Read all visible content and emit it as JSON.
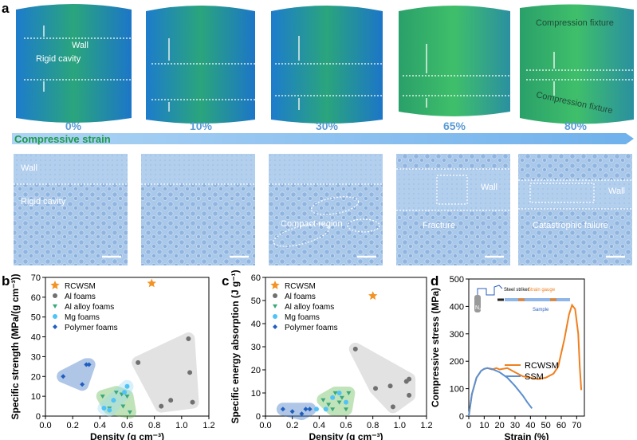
{
  "panel_labels": [
    "a",
    "b",
    "c",
    "d"
  ],
  "panel_a": {
    "strains": [
      "0%",
      "10%",
      "30%",
      "65%",
      "80%"
    ],
    "axis_label": "Compressive strain",
    "tomography_labels": [
      "Wall",
      "Rigid cavity",
      "Compression fixture",
      "Compression fixture"
    ],
    "micrograph_labels": [
      "Wall",
      "Rigid cavity",
      "Compact region",
      "Wall",
      "Fracture",
      "Wall",
      "Catastrophic failure"
    ]
  },
  "chart_data": [
    {
      "type": "scatter",
      "xlabel": "Density (g cm⁻³)",
      "ylabel": "Specific strength (MPa/(g cm⁻³))",
      "xlim": [
        0,
        1.2
      ],
      "xticks": [
        {
          "value": 0,
          "label": "0.0"
        },
        0.2,
        0.4,
        0.6,
        0.8,
        {
          "value": 1,
          "label": "1.0"
        },
        1.2
      ],
      "ylim": [
        0,
        70
      ],
      "yticks": [
        0,
        10,
        20,
        30,
        40,
        50,
        60,
        70
      ],
      "series": [
        {
          "name": "RCWSM",
          "color": "#f39325",
          "marker": "star",
          "region": false,
          "x": [
            0.78
          ],
          "values": [
            67
          ]
        },
        {
          "name": "Al foams",
          "color": "#707070",
          "marker": "circle",
          "region": "#b8b8b8",
          "x": [
            0.68,
            0.85,
            0.92,
            1.05,
            1.06,
            1.08
          ],
          "values": [
            27,
            5,
            8,
            39,
            22,
            7
          ]
        },
        {
          "name": "Al alloy foams",
          "color": "#3ba77a",
          "marker": "triangle",
          "region": "#66bb55",
          "x": [
            0.42,
            0.47,
            0.52,
            0.56,
            0.57,
            0.6,
            0.62
          ],
          "values": [
            10,
            4,
            12,
            11,
            5,
            10,
            2
          ]
        },
        {
          "name": "Mg foams",
          "color": "#4fc3f7",
          "marker": "circle",
          "region": "#9ddcf2",
          "x": [
            0.43,
            0.47,
            0.5,
            0.58,
            0.6
          ],
          "values": [
            4,
            3,
            8,
            12,
            15
          ]
        },
        {
          "name": "Polymer foams",
          "color": "#1f5fbf",
          "marker": "diamond",
          "region": "#3b73c4",
          "x": [
            0.13,
            0.27,
            0.3,
            0.32
          ],
          "values": [
            20,
            16,
            26,
            26
          ]
        }
      ]
    },
    {
      "type": "scatter",
      "xlabel": "Density (g cm⁻³)",
      "ylabel": "Specific energy absorption (J g⁻¹)",
      "xlim": [
        0,
        1.2
      ],
      "xticks": [
        {
          "value": 0,
          "label": "0.0"
        },
        0.2,
        0.4,
        0.6,
        0.8,
        {
          "value": 1,
          "label": "1.0"
        },
        1.2
      ],
      "ylim": [
        0,
        60
      ],
      "yticks": [
        0,
        10,
        20,
        30,
        40,
        50,
        60
      ],
      "series": [
        {
          "name": "RCWSM",
          "color": "#f39325",
          "marker": "star",
          "region": false,
          "x": [
            0.8
          ],
          "values": [
            52
          ]
        },
        {
          "name": "Al foams",
          "color": "#707070",
          "marker": "circle",
          "region": "#b8b8b8",
          "x": [
            0.67,
            0.82,
            0.93,
            0.95,
            1.05,
            1.07,
            1.07
          ],
          "values": [
            29,
            12,
            13,
            4,
            15,
            16,
            9
          ]
        },
        {
          "name": "Al alloy foams",
          "color": "#3ba77a",
          "marker": "triangle",
          "region": "#66bb55",
          "x": [
            0.43,
            0.47,
            0.5,
            0.52,
            0.55,
            0.57,
            0.6,
            0.62
          ],
          "values": [
            7,
            5,
            3,
            10,
            6,
            8,
            3,
            10
          ]
        },
        {
          "name": "Mg foams",
          "color": "#4fc3f7",
          "marker": "circle",
          "region": false,
          "x": [
            0.38,
            0.45,
            0.5,
            0.55,
            0.6
          ],
          "values": [
            3,
            3,
            8,
            10,
            6
          ]
        },
        {
          "name": "Polymer foams",
          "color": "#1f5fbf",
          "marker": "diamond",
          "region": "#3b73c4",
          "x": [
            0.13,
            0.2,
            0.27,
            0.3,
            0.33
          ],
          "values": [
            3,
            2,
            1,
            3,
            3
          ]
        }
      ]
    },
    {
      "type": "line",
      "xlabel": "Strain (%)",
      "ylabel": "Compressive stress (MPa)",
      "xlim": [
        0,
        75
      ],
      "xticks": [
        0,
        10,
        20,
        30,
        40,
        50,
        60,
        70
      ],
      "ylim": [
        0,
        500
      ],
      "yticks": [
        0,
        100,
        200,
        300,
        400,
        500
      ],
      "inset_labels": [
        "Steel striker",
        "Strain gauge",
        "Sample",
        "N₂"
      ],
      "series": [
        {
          "name": "RCWSM",
          "color": "#f07f1e",
          "x": [
            0,
            2,
            5,
            8,
            10,
            12,
            15,
            18,
            20,
            25,
            30,
            35,
            40,
            45,
            50,
            55,
            58,
            62,
            65,
            67,
            69,
            71,
            72,
            73
          ],
          "values": [
            0,
            80,
            140,
            165,
            172,
            175,
            170,
            175,
            170,
            175,
            160,
            145,
            140,
            135,
            140,
            155,
            180,
            280,
            370,
            405,
            390,
            300,
            180,
            95
          ]
        },
        {
          "name": "SSM",
          "color": "#5b8fd0",
          "x": [
            0,
            2,
            5,
            8,
            10,
            12,
            15,
            20,
            25,
            30,
            35,
            38,
            41
          ],
          "values": [
            0,
            80,
            140,
            165,
            172,
            175,
            172,
            160,
            140,
            110,
            75,
            50,
            28
          ]
        }
      ]
    }
  ]
}
